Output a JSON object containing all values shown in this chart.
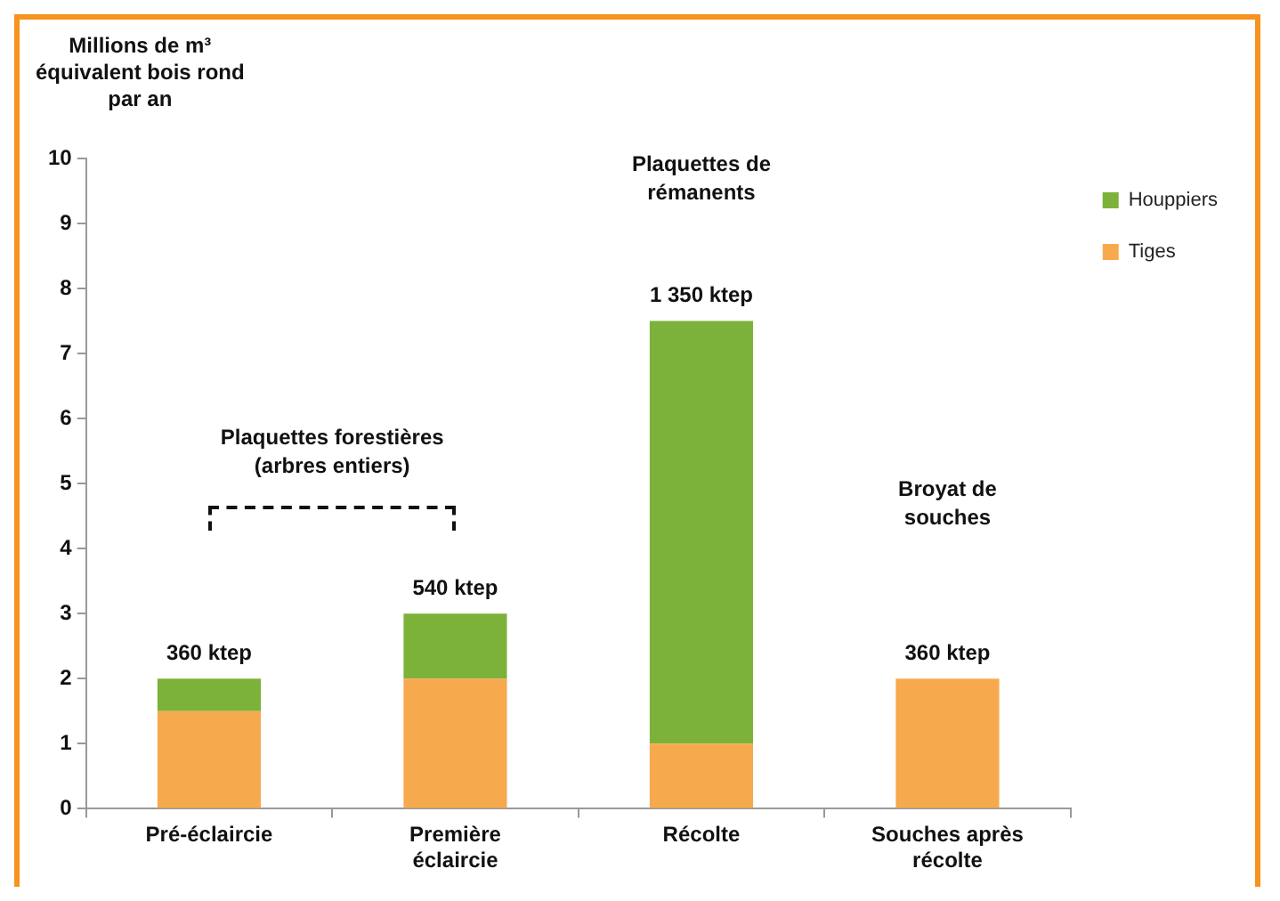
{
  "chart_data": {
    "type": "bar",
    "stacked": true,
    "ylabel": "Millions de m³\néquivalent bois rond\npar an",
    "categories": [
      "Pré-éclaircie",
      "Première\néclaircie",
      "Récolte",
      "Souches après\nrécolte"
    ],
    "series": [
      {
        "name": "Tiges",
        "color": "#f7a94e",
        "values": [
          1.5,
          2,
          1,
          2
        ]
      },
      {
        "name": "Houppiers",
        "color": "#7cb23a",
        "values": [
          0.5,
          1,
          6.5,
          null
        ]
      }
    ],
    "ylim": [
      0,
      10
    ],
    "yticks": [
      0,
      1,
      2,
      3,
      4,
      5,
      6,
      7,
      8,
      9,
      10
    ],
    "grid": false,
    "legend": "top right",
    "annotations": [
      {
        "text": "360 ktep",
        "x": "Pré-éclaircie",
        "y": 2
      },
      {
        "text": "540 ktep",
        "x": "Première\néclaircie",
        "y": 3
      },
      {
        "text": "1 350 ktep",
        "x": "Récolte",
        "y": 7.5
      },
      {
        "text": "360 ktep",
        "x": "Souches après\nrécolte",
        "y": 2
      },
      "Plaquettes de\nrémanents",
      "Broyat de\nsouches",
      "Plaquettes forestières\n(arbres entiers)"
    ]
  }
}
